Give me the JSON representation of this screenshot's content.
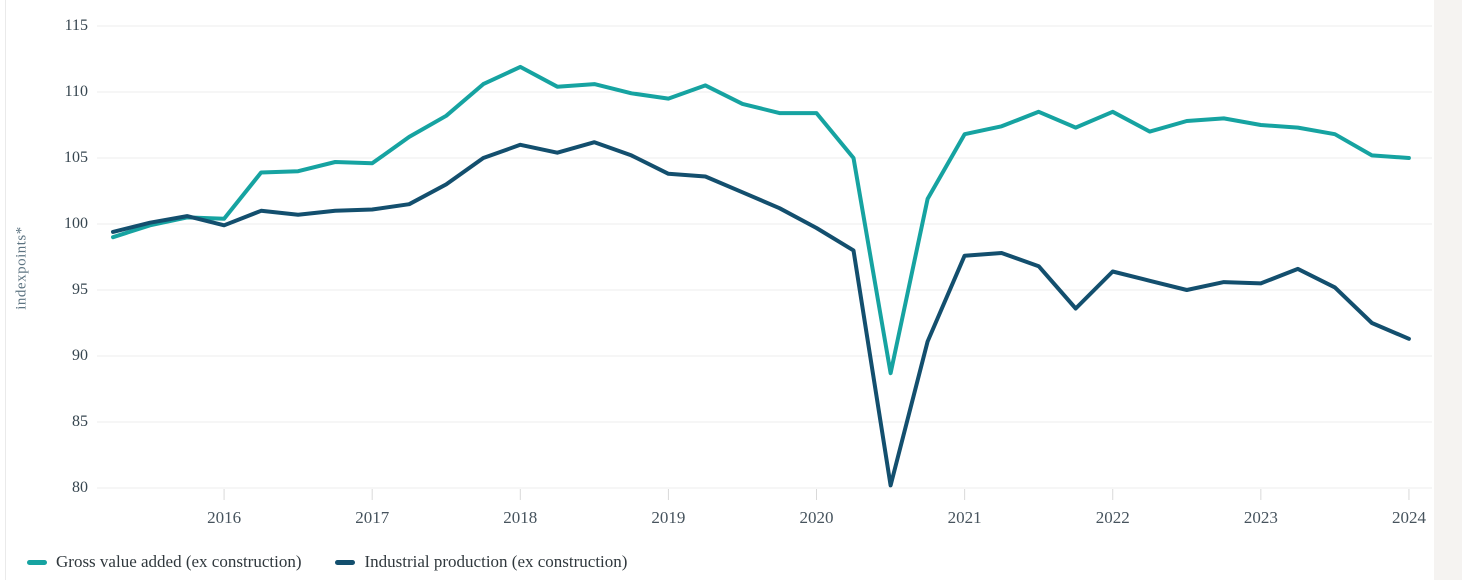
{
  "chart_data": {
    "type": "line",
    "title": "",
    "ylabel": "indexpoints*",
    "xlabel": "",
    "ylim": [
      80,
      115
    ],
    "y_ticks": [
      115,
      110,
      105,
      100,
      95,
      90,
      85,
      80
    ],
    "x_tick_labels": [
      "2016",
      "2017",
      "2018",
      "2019",
      "2020",
      "2021",
      "2022",
      "2023",
      "2024"
    ],
    "grid": "horizontal gridlines only, light grey; small year tick marks below baseline",
    "legend_position": "bottom-left",
    "quarters": [
      "2015 Q1",
      "2015 Q2",
      "2015 Q3",
      "2015 Q4",
      "2016 Q1",
      "2016 Q2",
      "2016 Q3",
      "2016 Q4",
      "2017 Q1",
      "2017 Q2",
      "2017 Q3",
      "2017 Q4",
      "2018 Q1",
      "2018 Q2",
      "2018 Q3",
      "2018 Q4",
      "2019 Q1",
      "2019 Q2",
      "2019 Q3",
      "2019 Q4",
      "2020 Q1",
      "2020 Q2",
      "2020 Q3",
      "2020 Q4",
      "2021 Q1",
      "2021 Q2",
      "2021 Q3",
      "2021 Q4",
      "2022 Q1",
      "2022 Q2",
      "2022 Q3",
      "2022 Q4",
      "2023 Q1",
      "2023 Q2",
      "2023 Q3",
      "2023 Q4"
    ],
    "series": [
      {
        "name": "Gross value added (ex construction)",
        "color": "#16a3a1",
        "values": [
          99.0,
          99.9,
          100.5,
          100.4,
          103.9,
          104.0,
          104.7,
          104.6,
          106.6,
          108.2,
          110.6,
          111.9,
          110.4,
          110.6,
          109.9,
          109.5,
          110.5,
          109.1,
          108.4,
          108.4,
          105.0,
          88.7,
          101.9,
          106.8,
          107.4,
          108.5,
          107.3,
          108.5,
          107.0,
          107.8,
          108.0,
          107.5,
          107.3,
          106.8,
          105.2,
          105.0
        ]
      },
      {
        "name": "Industrial production (ex construction)",
        "color": "#134f6e",
        "values": [
          99.4,
          100.1,
          100.6,
          99.9,
          101.0,
          100.7,
          101.0,
          101.1,
          101.5,
          103.0,
          105.0,
          106.0,
          105.4,
          106.2,
          105.2,
          103.8,
          103.6,
          102.4,
          101.2,
          99.7,
          98.0,
          80.2,
          91.1,
          97.6,
          97.8,
          96.8,
          93.6,
          96.4,
          95.7,
          95.0,
          95.6,
          95.5,
          96.6,
          95.2,
          92.5,
          91.3
        ]
      }
    ]
  },
  "colors": {
    "gridline": "#ededed",
    "tick_mark": "#d9d9d9",
    "y_tick_text": "#36454f",
    "x_tick_text": "#46535d",
    "axis_title_text": "#5d7482",
    "legend_text": "#30383d",
    "page_gutter": "#f5f3f1"
  }
}
